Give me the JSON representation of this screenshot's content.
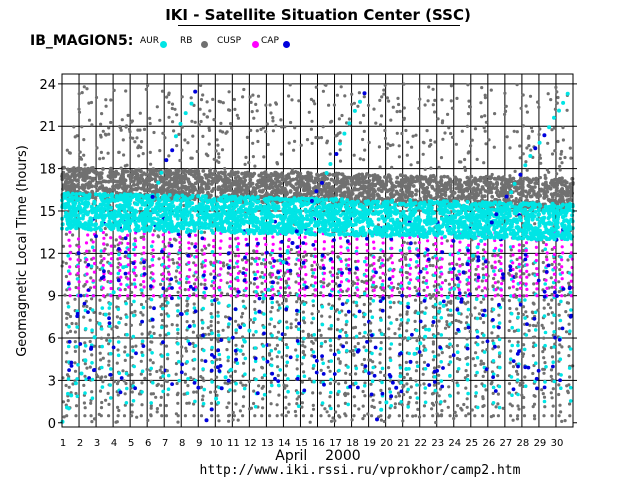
{
  "page": {
    "title": "IKI - Satellite Situation Center (SSC)",
    "url": "http://www.iki.rssi.ru/vprokhor/camp2.htm"
  },
  "legend": {
    "name": "IB_MAGION5:",
    "items": [
      {
        "label": "AUR",
        "color": "#00e5e5"
      },
      {
        "label": "RB",
        "color": "#707070"
      },
      {
        "label": "CUSP",
        "color": "#ff00ff"
      },
      {
        "label": "CAP",
        "color": "#0000dd"
      }
    ]
  },
  "chart_data": {
    "type": "scatter",
    "title": "IKI - Satellite Situation Center (SSC)",
    "xlabel": "April    2000",
    "ylabel": "Geomagnetic  Local  Time  (hours)",
    "x_categories": [
      "1",
      "2",
      "3",
      "4",
      "5",
      "6",
      "7",
      "8",
      "9",
      "10",
      "11",
      "12",
      "13",
      "14",
      "15",
      "16",
      "17",
      "18",
      "19",
      "20",
      "21",
      "22",
      "23",
      "24",
      "25",
      "26",
      "27",
      "28",
      "29",
      "30"
    ],
    "xlim": [
      1,
      31
    ],
    "y_ticks": [
      0,
      3,
      6,
      9,
      12,
      15,
      18,
      21,
      24
    ],
    "ylim": [
      -0.3,
      24.7
    ],
    "grid": true,
    "series": [
      {
        "name": "AUR",
        "color": "#00e5e5",
        "band_center_start": 15.0,
        "band_center_end": 14.2,
        "band_halfwidth": 1.3,
        "diagonal_tracks": [
          [
            1,
            0.2,
            9,
            24.0
          ],
          [
            9.5,
            0.3,
            19,
            24.0
          ],
          [
            19.5,
            0.3,
            31,
            24.0
          ]
        ]
      },
      {
        "name": "RB",
        "color": "#707070",
        "band_center_start": 17.0,
        "band_center_end": 16.2,
        "band_halfwidth": 1.1,
        "scatter_range": [
          0,
          24
        ]
      },
      {
        "name": "CUSP",
        "color": "#ff00ff",
        "range": [
          9.0,
          13.5
        ]
      },
      {
        "name": "CAP",
        "color": "#0000dd",
        "range": [
          2.0,
          24.0
        ]
      }
    ]
  }
}
